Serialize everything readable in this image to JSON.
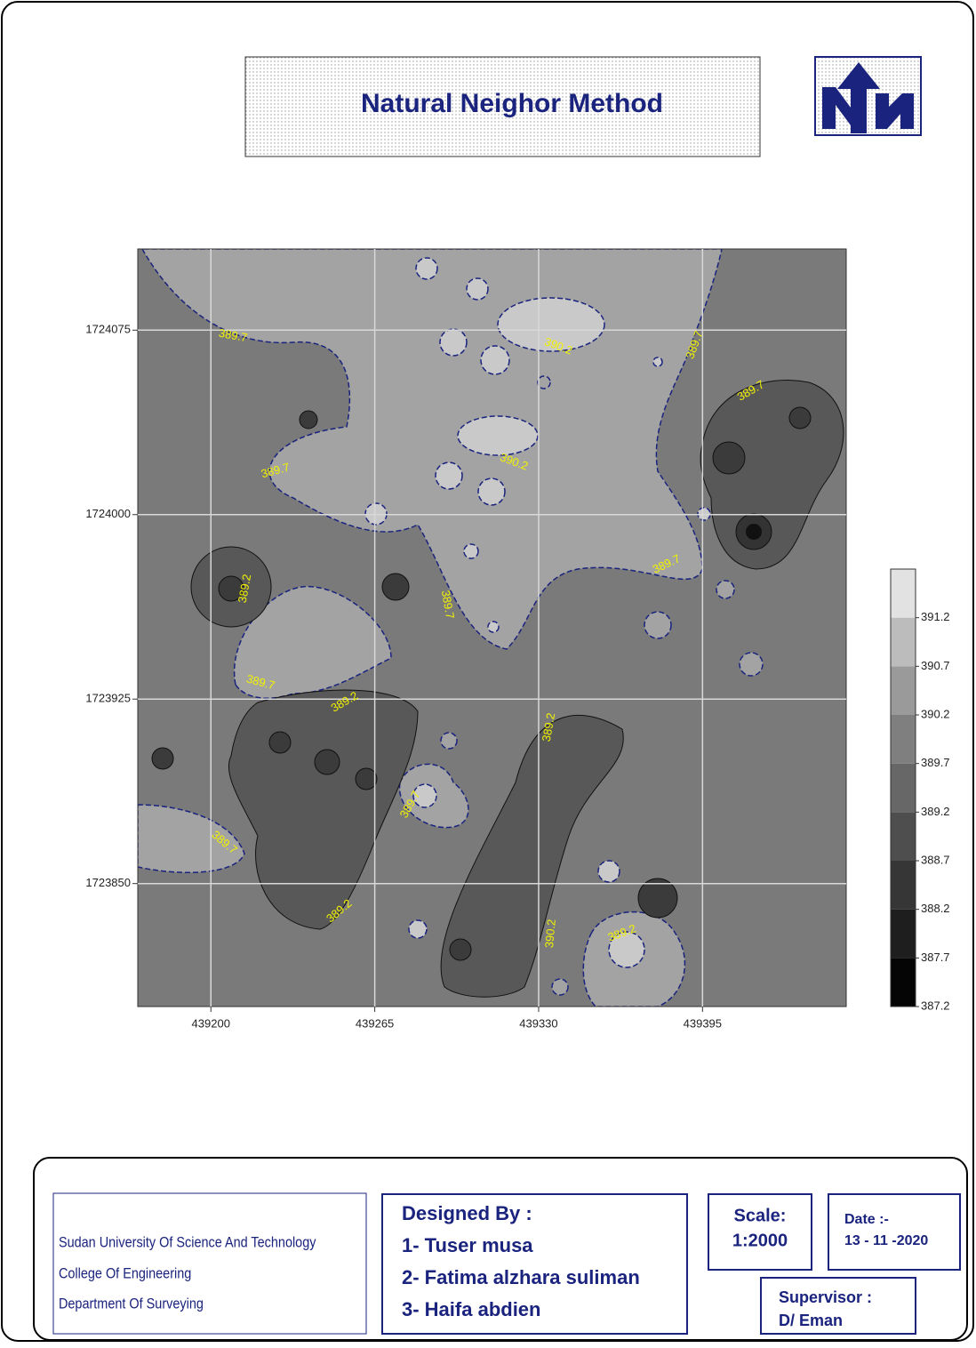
{
  "title": "Natural Neighor Method",
  "chart_data": {
    "type": "contour",
    "xlim": [
      439171,
      439452
    ],
    "ylim": [
      1723800,
      1724108
    ],
    "xticks": [
      439200,
      439265,
      439330,
      439395
    ],
    "yticks": [
      1724075,
      1724000,
      1723925,
      1723850
    ],
    "grid": true,
    "contour_labels": [
      389.7,
      390.2,
      389.7,
      389.2,
      389.7,
      390.2,
      389.7,
      389.2,
      389.7,
      389.7,
      389.2,
      389.2,
      389.7,
      389.7,
      389.2,
      390.2,
      389.7
    ],
    "legend": {
      "lim": [
        387.2,
        391.7
      ],
      "levels": [
        387.2,
        387.7,
        388.2,
        388.7,
        389.2,
        389.7,
        390.2,
        390.7,
        391.2
      ],
      "colors": [
        "#050505",
        "#1e1e1e",
        "#363636",
        "#4e4e4e",
        "#676767",
        "#7f7f7f",
        "#9a9a9a",
        "#bcbcbc",
        "#e2e2e2"
      ]
    }
  },
  "footer": {
    "institution": [
      "Sudan University Of Science And Technology",
      "College Of Engineering",
      "Department Of Surveying"
    ],
    "designed_by": "Designed By :",
    "designers": [
      "1- Tuser musa",
      "2- Fatima alzhara suliman",
      "3- Haifa abdien"
    ],
    "scale_label": "Scale:",
    "scale": "1:2000",
    "date_label": "Date :-",
    "date": "13 - 11 -2020",
    "supervisor_label": "Supervisor :",
    "supervisor": "D/ Eman"
  }
}
